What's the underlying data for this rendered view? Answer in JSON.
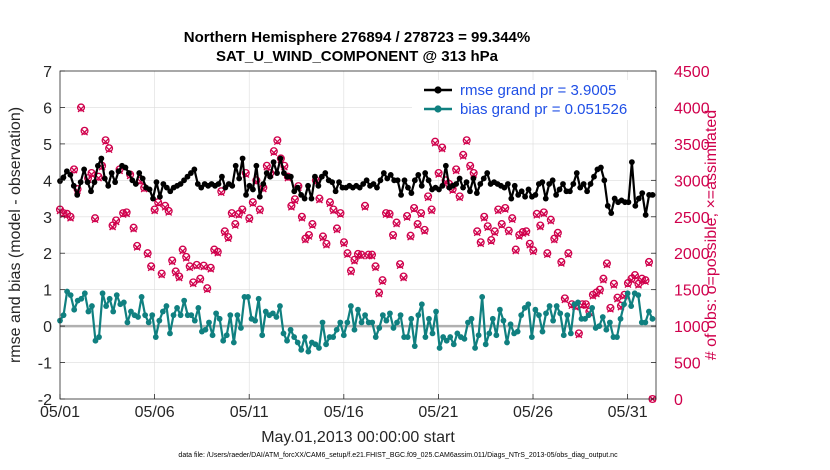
{
  "chart_data": {
    "type": "line",
    "title_line1": "Northern Hemisphere 276894 / 278723 = 99.344%",
    "title_line2": "SAT_U_WIND_COMPONENT @ 313 hPa",
    "xlabel": "May.01,2013 00:00:00 start",
    "ylabel_left": "rmse and bias (model - observation)",
    "ylabel_right": "# of obs: o=possible; ×=assimilated",
    "footnote": "data file: /Users/raeder/DAI/ATM_forcXX/CAM6_setup/f.e21.FHIST_BGC.f09_025.CAM6assim.011/Diags_NTrS_2013-05/obs_diag_output.nc",
    "x_range_days": [
      0,
      31.5
    ],
    "xticks": [
      {
        "day": 0,
        "label": "05/01"
      },
      {
        "day": 5,
        "label": "05/06"
      },
      {
        "day": 10,
        "label": "05/11"
      },
      {
        "day": 15,
        "label": "05/16"
      },
      {
        "day": 20,
        "label": "05/21"
      },
      {
        "day": 25,
        "label": "05/26"
      },
      {
        "day": 30,
        "label": "05/31"
      }
    ],
    "ylim_left": [
      -2,
      7
    ],
    "yticks_left": [
      "-2",
      "-1",
      "0",
      "1",
      "2",
      "3",
      "4",
      "5",
      "6",
      "7"
    ],
    "ylim_right": [
      0,
      4500
    ],
    "yticks_right": [
      "0",
      "500",
      "1000",
      "1500",
      "2000",
      "2500",
      "3000",
      "3500",
      "4000",
      "4500"
    ],
    "zero_line_color": "#b0b0b0",
    "series": [
      {
        "name": "rmse",
        "legend": "rmse grand pr = 3.9005",
        "color": "#000000",
        "axis": "left",
        "values": [
          3.98,
          4.08,
          4.25,
          4.15,
          3.85,
          3.6,
          3.95,
          4.3,
          3.95,
          3.7,
          3.95,
          4.4,
          4.6,
          4.05,
          3.85,
          4.2,
          3.95,
          4.25,
          4.4,
          4.35,
          4.2,
          4.0,
          3.9,
          4.2,
          4.05,
          3.8,
          3.75,
          3.5,
          3.95,
          3.55,
          3.9,
          3.8,
          3.7,
          3.8,
          3.85,
          3.9,
          4.0,
          4.1,
          4.2,
          4.3,
          3.9,
          3.8,
          3.9,
          3.85,
          3.9,
          3.85,
          3.9,
          4.1,
          3.8,
          3.9,
          3.85,
          4.4,
          4.05,
          4.6,
          3.6,
          3.85,
          3.75,
          4.4,
          3.55,
          3.9,
          4.2,
          4.1,
          4.5,
          4.2,
          4.6,
          4.2,
          4.1,
          4.1,
          3.7,
          3.8,
          3.6,
          3.5,
          3.85,
          3.5,
          4.1,
          3.85,
          4.1,
          4.2,
          4.0,
          3.95,
          3.7,
          3.95,
          3.8,
          3.8,
          3.85,
          3.8,
          3.85,
          3.8,
          3.9,
          4.0,
          3.85,
          3.9,
          3.8,
          4.0,
          4.2,
          4.05,
          4.15,
          4.0,
          4.0,
          3.6,
          4.0,
          3.8,
          3.65,
          4.0,
          4.15,
          3.85,
          4.2,
          4.0,
          3.75,
          3.8,
          3.75,
          3.85,
          4.4,
          3.8,
          3.85,
          3.9,
          4.05,
          3.8,
          3.95,
          3.7,
          4.05,
          3.65,
          3.9,
          4.05,
          4.2,
          3.9,
          3.95,
          3.9,
          3.85,
          3.8,
          3.9,
          3.5,
          3.85,
          3.6,
          3.7,
          3.55,
          3.75,
          3.55,
          3.6,
          3.9,
          3.95,
          3.5,
          3.9,
          4.0,
          3.6,
          3.75,
          3.9,
          3.7,
          3.7,
          3.9,
          4.2,
          3.8,
          3.9,
          3.7,
          3.9,
          4.1,
          4.3,
          4.35,
          4.0,
          3.3,
          3.1,
          3.5,
          3.4,
          3.45,
          3.4,
          3.4,
          4.5,
          3.3,
          3.5,
          3.65,
          3.05,
          3.6,
          3.6
        ]
      },
      {
        "name": "bias",
        "legend": "bias grand pr = 0.051526",
        "color": "#108080",
        "axis": "left",
        "values": [
          0.15,
          0.3,
          0.95,
          0.85,
          0.45,
          0.7,
          0.75,
          0.9,
          0.4,
          0.55,
          -0.4,
          -0.3,
          0.9,
          0.55,
          0.75,
          0.4,
          0.85,
          0.6,
          0.65,
          0.1,
          0.4,
          0.3,
          0.25,
          0.8,
          0.3,
          0.1,
          0.3,
          -0.3,
          0.15,
          0.4,
          0.55,
          -0.2,
          0.3,
          0.5,
          0.3,
          0.7,
          0.3,
          0.3,
          0.15,
          0.5,
          -0.15,
          -0.1,
          0.1,
          -0.25,
          0.35,
          0.2,
          -0.4,
          -0.25,
          0.3,
          -0.45,
          0.3,
          -0.05,
          0.8,
          0.8,
          0.2,
          0.15,
          0.75,
          -0.25,
          0.4,
          0.3,
          0.35,
          0.25,
          0.55,
          -0.2,
          -0.4,
          -0.1,
          -0.3,
          -0.45,
          -0.65,
          -0.3,
          -0.7,
          -0.45,
          -0.5,
          -0.6,
          0.1,
          -0.5,
          -0.3,
          -0.3,
          -0.1,
          0.1,
          -0.25,
          0.1,
          0.55,
          -0.1,
          0.45,
          0.1,
          0.3,
          0.1,
          0.1,
          -0.3,
          -0.05,
          0.3,
          0.15,
          0.35,
          -0.05,
          0.1,
          0.3,
          -0.3,
          -0.3,
          0.2,
          -0.55,
          0.3,
          0.6,
          -0.3,
          0.2,
          -0.2,
          0.4,
          -0.6,
          -0.3,
          -0.4,
          -0.3,
          -0.5,
          -0.2,
          -0.3,
          -0.35,
          0.1,
          0.2,
          -0.6,
          -0.25,
          0.8,
          -0.5,
          -0.2,
          0.2,
          -0.25,
          0.45,
          0.15,
          -0.45,
          0.05,
          -0.2,
          -0.15,
          0.3,
          0.5,
          0.6,
          -0.3,
          0.45,
          0.3,
          -0.15,
          0.35,
          0.55,
          0.15,
          0.55,
          0.35,
          -0.25,
          0.3,
          -0.2,
          0.6,
          0.65,
          0.2,
          0.2,
          0.3,
          0.5,
          -0.05,
          0.0,
          0.25,
          -0.1,
          0.1,
          -0.3,
          -0.3,
          0.2,
          0.6,
          0.9,
          0.55,
          0.9,
          0.85,
          0.1,
          0.1,
          0.4,
          0.2
        ]
      },
      {
        "name": "obs_possible",
        "marker": "o",
        "color": "#d0004c",
        "axis": "right",
        "values": [
          2600,
          2550,
          2540,
          2500,
          3150,
          2880,
          4000,
          3680,
          3030,
          3100,
          2480,
          3050,
          3200,
          3550,
          3440,
          2380,
          2450,
          3150,
          2550,
          2560,
          3080,
          2350,
          2100,
          3000,
          2900,
          2000,
          1820,
          2600,
          2700,
          1720,
          2650,
          2580,
          1900,
          1750,
          1680,
          2050,
          1950,
          1820,
          1600,
          1840,
          1650,
          1830,
          1520,
          1800,
          2050,
          2020,
          2850,
          2300,
          2220,
          2550,
          2400,
          2540,
          2600,
          3100,
          2480,
          2700,
          3000,
          2600,
          2900,
          3200,
          3100,
          3400,
          3550,
          3300,
          3200,
          3050,
          2650,
          2740,
          2920,
          2500,
          2200,
          2250,
          2400,
          3000,
          2750,
          2230,
          2130,
          2700,
          2600,
          2340,
          2550,
          2150,
          2000,
          1760,
          1910,
          1990,
          1980,
          2650,
          1980,
          1980,
          1820,
          1460,
          1630,
          2550,
          2540,
          2250,
          2420,
          1850,
          1680,
          2510,
          2240,
          2620,
          2400,
          2550,
          2320,
          2780,
          2600,
          3530,
          3100,
          3450,
          3000,
          2950,
          2880,
          3150,
          2780,
          3350,
          3550,
          3200,
          3100,
          2300,
          2150,
          2500,
          2370,
          2180,
          2300,
          2600,
          2400,
          2620,
          2310,
          2480,
          2050,
          2250,
          2290,
          2300,
          2130,
          2040,
          2540,
          2380,
          2560,
          2000,
          2460,
          2200,
          2280,
          1880,
          1380,
          2000,
          1300,
          1280,
          900,
          1300,
          1300,
          1200,
          1430,
          1460,
          1500,
          1650,
          1860,
          1250,
          1580,
          1390,
          1280,
          1430,
          1590,
          1650,
          1700,
          1580,
          1650,
          1630,
          1880,
          0
        ]
      },
      {
        "name": "obs_assimilated",
        "marker": "x",
        "color": "#d0004c",
        "axis": "right",
        "values": [
          2580,
          2530,
          2520,
          2480,
          3140,
          2860,
          3980,
          3660,
          3010,
          3080,
          2460,
          3030,
          3180,
          3530,
          3420,
          2360,
          2430,
          3130,
          2530,
          2540,
          3060,
          2330,
          2080,
          2980,
          2880,
          1980,
          1800,
          2580,
          2680,
          1700,
          2630,
          2560,
          1880,
          1730,
          1660,
          2030,
          1930,
          1800,
          1580,
          1820,
          1630,
          1810,
          1500,
          1780,
          2030,
          2000,
          2830,
          2280,
          2200,
          2530,
          2380,
          2520,
          2580,
          3080,
          2460,
          2680,
          2980,
          2580,
          2880,
          3180,
          3080,
          3380,
          3530,
          3280,
          3180,
          3030,
          2630,
          2720,
          2900,
          2480,
          2180,
          2230,
          2380,
          2980,
          2730,
          2210,
          2110,
          2680,
          2580,
          2320,
          2530,
          2130,
          1980,
          1740,
          1890,
          1970,
          1960,
          2630,
          1960,
          1960,
          1800,
          1440,
          1610,
          2530,
          2520,
          2230,
          2400,
          1830,
          1660,
          2490,
          2220,
          2600,
          2380,
          2530,
          2300,
          2760,
          2580,
          3510,
          3080,
          3430,
          2980,
          2930,
          2860,
          3130,
          2760,
          3330,
          3530,
          3180,
          3080,
          2280,
          2130,
          2480,
          2350,
          2160,
          2280,
          2580,
          2380,
          2600,
          2290,
          2460,
          2030,
          2230,
          2270,
          2280,
          2110,
          2020,
          2520,
          2360,
          2540,
          1980,
          2440,
          2180,
          2260,
          1860,
          1360,
          1980,
          1280,
          1260,
          880,
          1280,
          1280,
          1180,
          1410,
          1440,
          1480,
          1630,
          1840,
          1230,
          1560,
          1370,
          1260,
          1410,
          1570,
          1630,
          1680,
          1560,
          1630,
          1610,
          1860,
          0
        ]
      }
    ]
  }
}
